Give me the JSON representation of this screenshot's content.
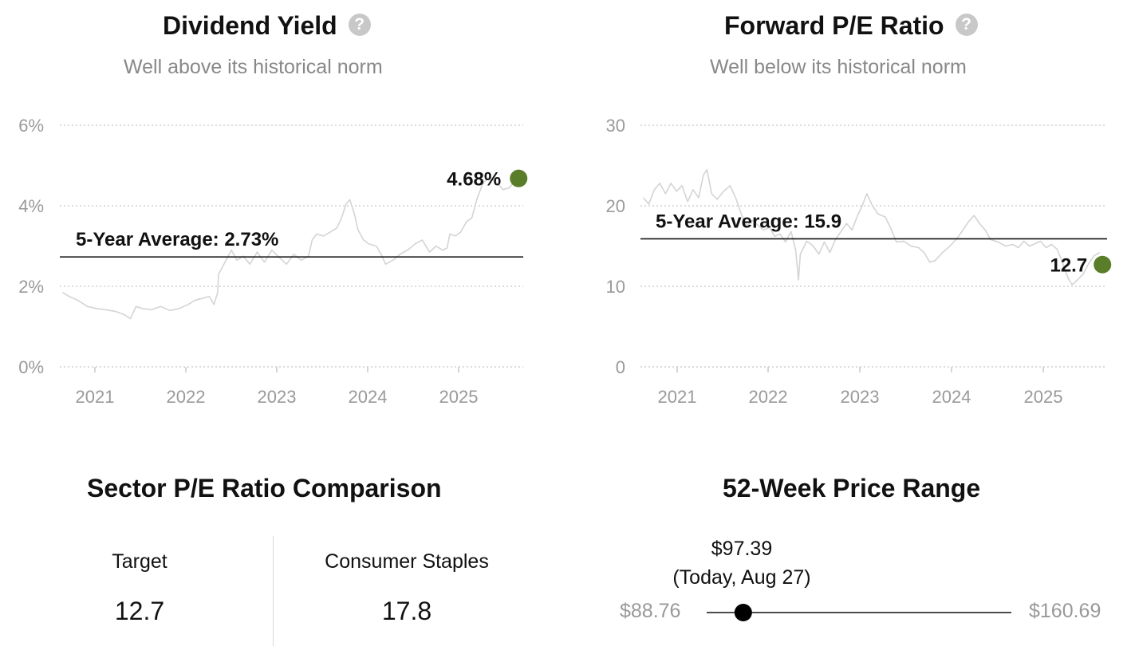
{
  "dividend": {
    "title": "Dividend Yield",
    "subtitle": "Well above its historical norm",
    "help_icon": "question-icon"
  },
  "pe": {
    "title": "Forward P/E Ratio",
    "subtitle": "Well below its historical norm",
    "help_icon": "question-icon"
  },
  "chart_data": [
    {
      "type": "line",
      "title": "Dividend Yield",
      "subtitle": "Well above its historical norm",
      "y_ticks": [
        "0%",
        "2%",
        "4%",
        "6%"
      ],
      "ylim": [
        0,
        6
      ],
      "x_ticks": [
        "2021",
        "2022",
        "2023",
        "2024",
        "2025"
      ],
      "xlim": [
        2020.65,
        2025.7
      ],
      "grid": true,
      "average": {
        "label": "5-Year Average: 2.73%",
        "value": 2.73
      },
      "current": {
        "label": "4.68%",
        "x": 2025.65,
        "value": 4.68,
        "color": "#5a7d2a"
      },
      "series": [
        {
          "color": "#d4d4d4",
          "points": [
            [
              2020.68,
              1.85
            ],
            [
              2020.75,
              1.75
            ],
            [
              2020.85,
              1.65
            ],
            [
              2020.95,
              1.5
            ],
            [
              2021.05,
              1.45
            ],
            [
              2021.15,
              1.42
            ],
            [
              2021.25,
              1.38
            ],
            [
              2021.35,
              1.3
            ],
            [
              2021.42,
              1.2
            ],
            [
              2021.48,
              1.5
            ],
            [
              2021.55,
              1.45
            ],
            [
              2021.65,
              1.42
            ],
            [
              2021.75,
              1.5
            ],
            [
              2021.85,
              1.4
            ],
            [
              2021.95,
              1.45
            ],
            [
              2022.05,
              1.55
            ],
            [
              2022.12,
              1.65
            ],
            [
              2022.2,
              1.7
            ],
            [
              2022.28,
              1.75
            ],
            [
              2022.33,
              1.55
            ],
            [
              2022.37,
              1.85
            ],
            [
              2022.38,
              2.3
            ],
            [
              2022.45,
              2.6
            ],
            [
              2022.52,
              2.9
            ],
            [
              2022.58,
              2.65
            ],
            [
              2022.65,
              2.75
            ],
            [
              2022.72,
              2.55
            ],
            [
              2022.8,
              2.85
            ],
            [
              2022.88,
              2.6
            ],
            [
              2022.96,
              2.9
            ],
            [
              2023.05,
              2.7
            ],
            [
              2023.12,
              2.55
            ],
            [
              2023.2,
              2.8
            ],
            [
              2023.28,
              2.65
            ],
            [
              2023.36,
              2.75
            ],
            [
              2023.4,
              3.15
            ],
            [
              2023.45,
              3.3
            ],
            [
              2023.52,
              3.25
            ],
            [
              2023.6,
              3.35
            ],
            [
              2023.67,
              3.45
            ],
            [
              2023.72,
              3.7
            ],
            [
              2023.77,
              4.05
            ],
            [
              2023.81,
              4.15
            ],
            [
              2023.86,
              3.8
            ],
            [
              2023.9,
              3.4
            ],
            [
              2023.96,
              3.15
            ],
            [
              2024.02,
              3.05
            ],
            [
              2024.1,
              3.0
            ],
            [
              2024.15,
              2.8
            ],
            [
              2024.2,
              2.55
            ],
            [
              2024.28,
              2.65
            ],
            [
              2024.36,
              2.8
            ],
            [
              2024.44,
              2.9
            ],
            [
              2024.52,
              3.05
            ],
            [
              2024.6,
              3.15
            ],
            [
              2024.68,
              2.85
            ],
            [
              2024.75,
              3.0
            ],
            [
              2024.82,
              2.9
            ],
            [
              2024.87,
              2.95
            ],
            [
              2024.9,
              3.3
            ],
            [
              2024.96,
              3.25
            ],
            [
              2025.02,
              3.35
            ],
            [
              2025.08,
              3.6
            ],
            [
              2025.14,
              3.7
            ],
            [
              2025.2,
              4.2
            ],
            [
              2025.26,
              4.55
            ],
            [
              2025.32,
              4.7
            ],
            [
              2025.4,
              4.6
            ],
            [
              2025.48,
              4.4
            ],
            [
              2025.55,
              4.45
            ],
            [
              2025.62,
              4.65
            ]
          ]
        }
      ]
    },
    {
      "type": "line",
      "title": "Forward P/E Ratio",
      "subtitle": "Well below its historical norm",
      "y_ticks": [
        "0",
        "10",
        "20",
        "30"
      ],
      "ylim": [
        0,
        30
      ],
      "x_ticks": [
        "2021",
        "2022",
        "2023",
        "2024",
        "2025"
      ],
      "xlim": [
        2020.65,
        2025.7
      ],
      "grid": true,
      "average": {
        "label": "5-Year Average: 15.9",
        "value": 15.9
      },
      "current": {
        "label": "12.7",
        "x": 2025.65,
        "value": 12.7,
        "color": "#5a7d2a"
      },
      "series": [
        {
          "color": "#d4d4d4",
          "points": [
            [
              2020.68,
              21.0
            ],
            [
              2020.74,
              20.2
            ],
            [
              2020.8,
              22.0
            ],
            [
              2020.86,
              22.8
            ],
            [
              2020.92,
              21.5
            ],
            [
              2020.98,
              22.8
            ],
            [
              2021.04,
              21.8
            ],
            [
              2021.1,
              22.5
            ],
            [
              2021.16,
              20.5
            ],
            [
              2021.22,
              22.0
            ],
            [
              2021.28,
              21.0
            ],
            [
              2021.33,
              23.8
            ],
            [
              2021.37,
              24.5
            ],
            [
              2021.42,
              21.5
            ],
            [
              2021.48,
              20.8
            ],
            [
              2021.55,
              21.8
            ],
            [
              2021.62,
              22.5
            ],
            [
              2021.68,
              21.0
            ],
            [
              2021.74,
              19.0
            ],
            [
              2021.8,
              17.5
            ],
            [
              2021.86,
              18.2
            ],
            [
              2021.92,
              17.6
            ],
            [
              2021.98,
              17.0
            ],
            [
              2022.05,
              17.3
            ],
            [
              2022.1,
              16.2
            ],
            [
              2022.16,
              16.5
            ],
            [
              2022.22,
              15.5
            ],
            [
              2022.28,
              16.8
            ],
            [
              2022.33,
              14.5
            ],
            [
              2022.36,
              10.8
            ],
            [
              2022.38,
              14.0
            ],
            [
              2022.45,
              15.6
            ],
            [
              2022.52,
              15.0
            ],
            [
              2022.58,
              14.0
            ],
            [
              2022.64,
              15.5
            ],
            [
              2022.7,
              14.2
            ],
            [
              2022.76,
              15.8
            ],
            [
              2022.82,
              16.8
            ],
            [
              2022.88,
              17.8
            ],
            [
              2022.94,
              17.0
            ],
            [
              2023.0,
              18.8
            ],
            [
              2023.05,
              20.0
            ],
            [
              2023.1,
              21.5
            ],
            [
              2023.16,
              20.0
            ],
            [
              2023.22,
              19.0
            ],
            [
              2023.3,
              18.6
            ],
            [
              2023.36,
              17.2
            ],
            [
              2023.42,
              15.5
            ],
            [
              2023.5,
              15.6
            ],
            [
              2023.58,
              15.0
            ],
            [
              2023.66,
              14.8
            ],
            [
              2023.72,
              14.2
            ],
            [
              2023.78,
              13.0
            ],
            [
              2023.84,
              13.2
            ],
            [
              2023.92,
              14.2
            ],
            [
              2024.0,
              15.0
            ],
            [
              2024.08,
              16.0
            ],
            [
              2024.14,
              17.0
            ],
            [
              2024.2,
              18.0
            ],
            [
              2024.26,
              18.8
            ],
            [
              2024.32,
              17.8
            ],
            [
              2024.38,
              17.0
            ],
            [
              2024.44,
              15.8
            ],
            [
              2024.52,
              15.5
            ],
            [
              2024.6,
              15.0
            ],
            [
              2024.68,
              15.2
            ],
            [
              2024.74,
              14.8
            ],
            [
              2024.8,
              15.6
            ],
            [
              2024.86,
              15.0
            ],
            [
              2024.92,
              15.3
            ],
            [
              2024.98,
              15.6
            ],
            [
              2025.04,
              14.8
            ],
            [
              2025.1,
              15.2
            ],
            [
              2025.16,
              14.6
            ],
            [
              2025.2,
              13.5
            ],
            [
              2025.24,
              12.2
            ],
            [
              2025.28,
              11.0
            ],
            [
              2025.32,
              10.2
            ],
            [
              2025.38,
              10.8
            ],
            [
              2025.44,
              11.5
            ],
            [
              2025.5,
              12.8
            ],
            [
              2025.56,
              13.8
            ],
            [
              2025.62,
              14.2
            ]
          ]
        }
      ]
    }
  ],
  "sector": {
    "title": "Sector P/E Ratio Comparison",
    "items": [
      {
        "label": "Target",
        "value": "12.7"
      },
      {
        "label": "Consumer Staples",
        "value": "17.8"
      }
    ]
  },
  "range": {
    "title": "52-Week Price Range",
    "low": "$88.76",
    "high": "$160.69",
    "low_value": 88.76,
    "high_value": 160.69,
    "current_value": 97.39,
    "current_price": "$97.39",
    "current_note": "(Today, Aug 27)"
  }
}
